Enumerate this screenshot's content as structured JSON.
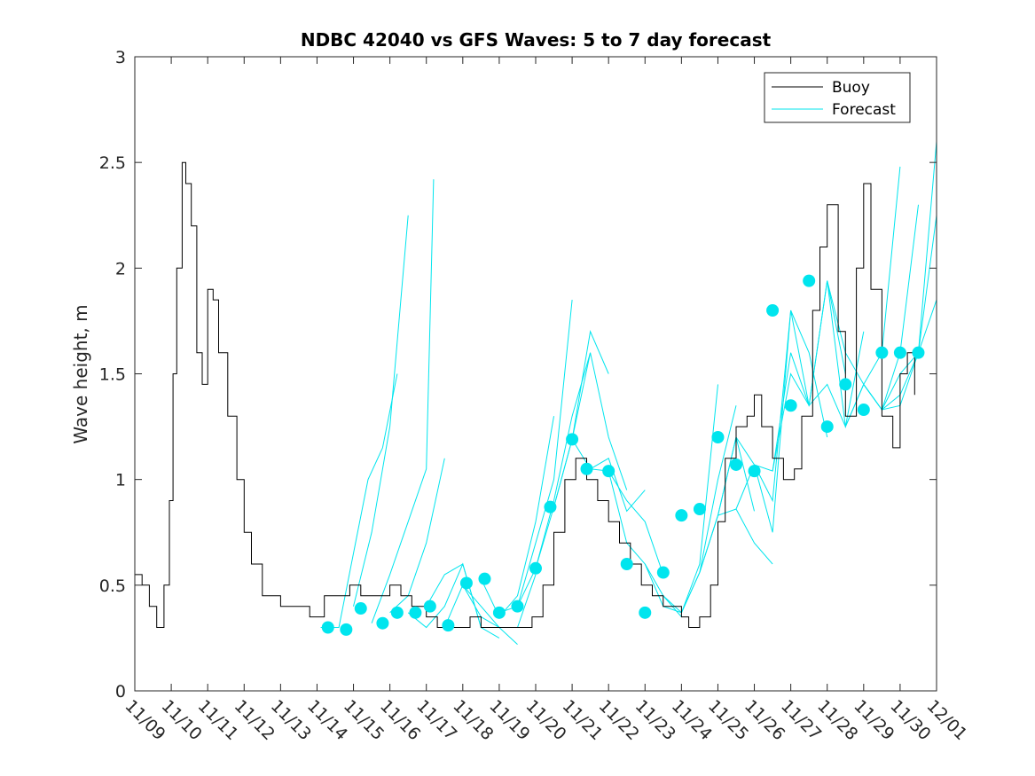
{
  "chart_data": {
    "type": "line",
    "title": "NDBC 42040 vs GFS Waves: 5 to 7 day forecast",
    "xlabel": "",
    "ylabel": "Wave height, m",
    "x_day_range": [
      0,
      22
    ],
    "ylim": [
      0,
      3
    ],
    "yticks": [
      0,
      0.5,
      1,
      1.5,
      2,
      2.5,
      3
    ],
    "ytick_labels": [
      "0",
      "0.5",
      "1",
      "1.5",
      "2",
      "2.5",
      "3"
    ],
    "xticks": [
      0,
      1,
      2,
      3,
      4,
      5,
      6,
      7,
      8,
      9,
      10,
      11,
      12,
      13,
      14,
      15,
      16,
      17,
      18,
      19,
      20,
      21,
      22
    ],
    "xtick_labels": [
      "11/09",
      "11/10",
      "11/11",
      "11/12",
      "11/13",
      "11/14",
      "11/15",
      "11/16",
      "11/17",
      "11/18",
      "11/19",
      "11/20",
      "11/21",
      "11/22",
      "11/23",
      "11/24",
      "11/25",
      "11/26",
      "11/27",
      "11/28",
      "11/29",
      "11/30",
      "12/01"
    ],
    "legend": {
      "location": "top-right",
      "entries": [
        {
          "label": "Buoy",
          "color": "#000000"
        },
        {
          "label": "Forecast",
          "color": "#00e5ee"
        }
      ]
    },
    "series": [
      {
        "name": "Buoy",
        "color": "#000000",
        "x": [
          0,
          0.2,
          0.4,
          0.5,
          0.6,
          0.8,
          0.95,
          1.05,
          1.15,
          1.3,
          1.4,
          1.55,
          1.7,
          1.85,
          2.0,
          2.15,
          2.3,
          2.55,
          2.8,
          3.0,
          3.2,
          3.5,
          4.0,
          4.4,
          4.8,
          5.2,
          5.6,
          5.9,
          6.2,
          6.6,
          7.0,
          7.3,
          7.6,
          8.0,
          8.3,
          8.6,
          8.9,
          9.2,
          9.5,
          10.0,
          10.5,
          10.9,
          11.2,
          11.5,
          11.8,
          12.1,
          12.4,
          12.7,
          13.0,
          13.3,
          13.6,
          13.9,
          14.2,
          14.5,
          14.8,
          15.0,
          15.2,
          15.5,
          15.8,
          16.0,
          16.2,
          16.5,
          16.8,
          17.0,
          17.2,
          17.5,
          17.8,
          18.1,
          18.3,
          18.6,
          18.8,
          19.0,
          19.3,
          19.5,
          19.8,
          20.0,
          20.2,
          20.5,
          20.8,
          21.0,
          21.2,
          21.4
        ],
        "values": [
          0.55,
          0.5,
          0.4,
          0.4,
          0.3,
          0.5,
          0.9,
          1.5,
          2.0,
          2.5,
          2.4,
          2.2,
          1.6,
          1.45,
          1.9,
          1.85,
          1.6,
          1.3,
          1.0,
          0.75,
          0.6,
          0.45,
          0.4,
          0.4,
          0.35,
          0.45,
          0.45,
          0.5,
          0.45,
          0.45,
          0.5,
          0.45,
          0.4,
          0.35,
          0.3,
          0.3,
          0.3,
          0.35,
          0.3,
          0.3,
          0.3,
          0.35,
          0.5,
          0.75,
          1.0,
          1.1,
          1.0,
          0.9,
          0.8,
          0.7,
          0.6,
          0.5,
          0.45,
          0.4,
          0.4,
          0.35,
          0.3,
          0.35,
          0.5,
          0.8,
          1.1,
          1.25,
          1.3,
          1.4,
          1.25,
          1.1,
          1.0,
          1.05,
          1.3,
          1.8,
          2.1,
          2.3,
          1.7,
          1.3,
          2.0,
          2.4,
          1.9,
          1.3,
          1.15,
          1.5,
          1.6,
          1.4
        ]
      },
      {
        "name": "Forecast",
        "color": "#00e5ee",
        "runs": [
          {
            "x": [
              5.1,
              5.6,
              6.0,
              6.4,
              6.8,
              7.2
            ],
            "values": [
              0.3,
              0.3,
              0.65,
              1.0,
              1.15,
              1.5
            ]
          },
          {
            "x": [
              6.0,
              6.5,
              7.0,
              7.5
            ],
            "values": [
              0.4,
              0.75,
              1.25,
              2.25
            ]
          },
          {
            "x": [
              6.5,
              7.0,
              7.5,
              8.0,
              8.2
            ],
            "values": [
              0.32,
              0.55,
              0.8,
              1.05,
              2.42
            ]
          },
          {
            "x": [
              7.0,
              7.5,
              8.0,
              8.5
            ],
            "values": [
              0.37,
              0.45,
              0.7,
              1.1
            ]
          },
          {
            "x": [
              7.5,
              8.0,
              8.5,
              9.0,
              9.5
            ],
            "values": [
              0.37,
              0.3,
              0.4,
              0.6,
              0.3
            ]
          },
          {
            "x": [
              8.0,
              8.5,
              9.0,
              9.5,
              10.0
            ],
            "values": [
              0.4,
              0.55,
              0.6,
              0.3,
              0.25
            ]
          },
          {
            "x": [
              8.5,
              9.0,
              9.5,
              10.0,
              10.5
            ],
            "values": [
              0.3,
              0.5,
              0.35,
              0.3,
              0.22
            ]
          },
          {
            "x": [
              9.0,
              9.5,
              10.0,
              10.5,
              11.0
            ],
            "values": [
              0.5,
              0.4,
              0.3,
              0.3,
              0.55
            ]
          },
          {
            "x": [
              9.5,
              10.0,
              10.5,
              11.0,
              11.5
            ],
            "values": [
              0.53,
              0.35,
              0.45,
              0.8,
              1.3
            ]
          },
          {
            "x": [
              10.0,
              10.5,
              11.0,
              11.5,
              12.0
            ],
            "values": [
              0.37,
              0.4,
              0.7,
              1.0,
              1.85
            ]
          },
          {
            "x": [
              10.5,
              11.0,
              11.5,
              12.0,
              12.5
            ],
            "values": [
              0.4,
              0.58,
              0.9,
              1.3,
              1.6
            ]
          },
          {
            "x": [
              11.0,
              11.5,
              12.0,
              12.5,
              13.0
            ],
            "values": [
              0.58,
              0.87,
              1.19,
              1.7,
              1.5
            ]
          },
          {
            "x": [
              11.5,
              12.0,
              12.5,
              13.0,
              13.5
            ],
            "values": [
              0.87,
              1.19,
              1.6,
              1.2,
              0.95
            ]
          },
          {
            "x": [
              12.0,
              12.5,
              13.0,
              13.5,
              14.0
            ],
            "values": [
              1.19,
              1.05,
              1.1,
              0.85,
              0.95
            ]
          },
          {
            "x": [
              12.5,
              13.0,
              13.5,
              14.0,
              14.5
            ],
            "values": [
              1.05,
              1.04,
              0.9,
              0.8,
              0.55
            ]
          },
          {
            "x": [
              13.0,
              13.5,
              14.0,
              14.5,
              15.0
            ],
            "values": [
              1.04,
              0.7,
              0.6,
              0.45,
              0.35
            ]
          },
          {
            "x": [
              14.0,
              14.5,
              15.0,
              15.5,
              16.0
            ],
            "values": [
              0.6,
              0.4,
              0.37,
              0.6,
              1.45
            ]
          },
          {
            "x": [
              14.5,
              15.0,
              15.5,
              16.0,
              16.5
            ],
            "values": [
              0.45,
              0.37,
              0.56,
              1.0,
              1.35
            ]
          },
          {
            "x": [
              15.0,
              15.5,
              16.0,
              16.5,
              17.0
            ],
            "values": [
              0.37,
              0.56,
              0.83,
              1.2,
              0.85
            ]
          },
          {
            "x": [
              15.5,
              16.0,
              16.5,
              17.0,
              17.5
            ],
            "values": [
              0.56,
              0.83,
              0.86,
              0.7,
              0.6
            ]
          },
          {
            "x": [
              16.0,
              16.5,
              17.0,
              17.5,
              18.0
            ],
            "values": [
              0.83,
              1.2,
              1.07,
              0.75,
              1.8
            ]
          },
          {
            "x": [
              16.5,
              17.0,
              17.5,
              18.0,
              18.5
            ],
            "values": [
              0.86,
              1.07,
              1.04,
              1.6,
              1.35
            ]
          },
          {
            "x": [
              17.0,
              17.5,
              18.0,
              18.5,
              19.0
            ],
            "values": [
              1.07,
              0.9,
              1.8,
              1.6,
              1.2
            ]
          },
          {
            "x": [
              17.5,
              18.0,
              18.5,
              19.0,
              19.5
            ],
            "values": [
              1.04,
              1.5,
              1.35,
              1.94,
              1.5
            ]
          },
          {
            "x": [
              18.0,
              18.5,
              19.0,
              19.5,
              20.0
            ],
            "values": [
              1.8,
              1.35,
              1.45,
              1.25,
              1.7
            ]
          },
          {
            "x": [
              18.5,
              19.0,
              19.5,
              20.0,
              20.5,
              21.0
            ],
            "values": [
              1.35,
              1.94,
              1.6,
              1.45,
              1.6,
              2.48
            ]
          },
          {
            "x": [
              19.0,
              19.5,
              20.0,
              20.5,
              21.0,
              21.5
            ],
            "values": [
              1.94,
              1.25,
              1.45,
              1.33,
              1.6,
              2.3
            ]
          },
          {
            "x": [
              19.5,
              20.0,
              20.5,
              21.0,
              21.5,
              22.0
            ],
            "values": [
              1.25,
              1.45,
              1.33,
              1.35,
              1.6,
              2.6
            ]
          },
          {
            "x": [
              20.0,
              20.5,
              21.0,
              21.5,
              22.0
            ],
            "values": [
              1.45,
              1.33,
              1.5,
              1.6,
              2.25
            ]
          },
          {
            "x": [
              20.5,
              21.0,
              21.5,
              22.0
            ],
            "values": [
              1.33,
              1.4,
              1.6,
              1.85
            ]
          }
        ],
        "markers": {
          "x": [
            5.3,
            5.8,
            6.2,
            6.8,
            7.2,
            7.7,
            8.1,
            8.6,
            9.1,
            9.6,
            10.0,
            10.5,
            11.0,
            11.4,
            12.0,
            12.4,
            13.0,
            13.5,
            14.0,
            14.5,
            15.0,
            15.5,
            16.0,
            16.5,
            17.0,
            17.5,
            18.0,
            18.5,
            19.0,
            19.5,
            20.0,
            20.5,
            21.0,
            21.5
          ],
          "values": [
            0.3,
            0.29,
            0.39,
            0.32,
            0.37,
            0.37,
            0.4,
            0.31,
            0.51,
            0.53,
            0.37,
            0.4,
            0.58,
            0.87,
            1.19,
            1.05,
            1.04,
            0.6,
            0.37,
            0.56,
            0.83,
            0.86,
            1.2,
            1.07,
            1.04,
            1.8,
            1.35,
            1.94,
            1.25,
            1.45,
            1.33,
            1.6,
            1.6,
            1.6
          ]
        }
      }
    ]
  }
}
